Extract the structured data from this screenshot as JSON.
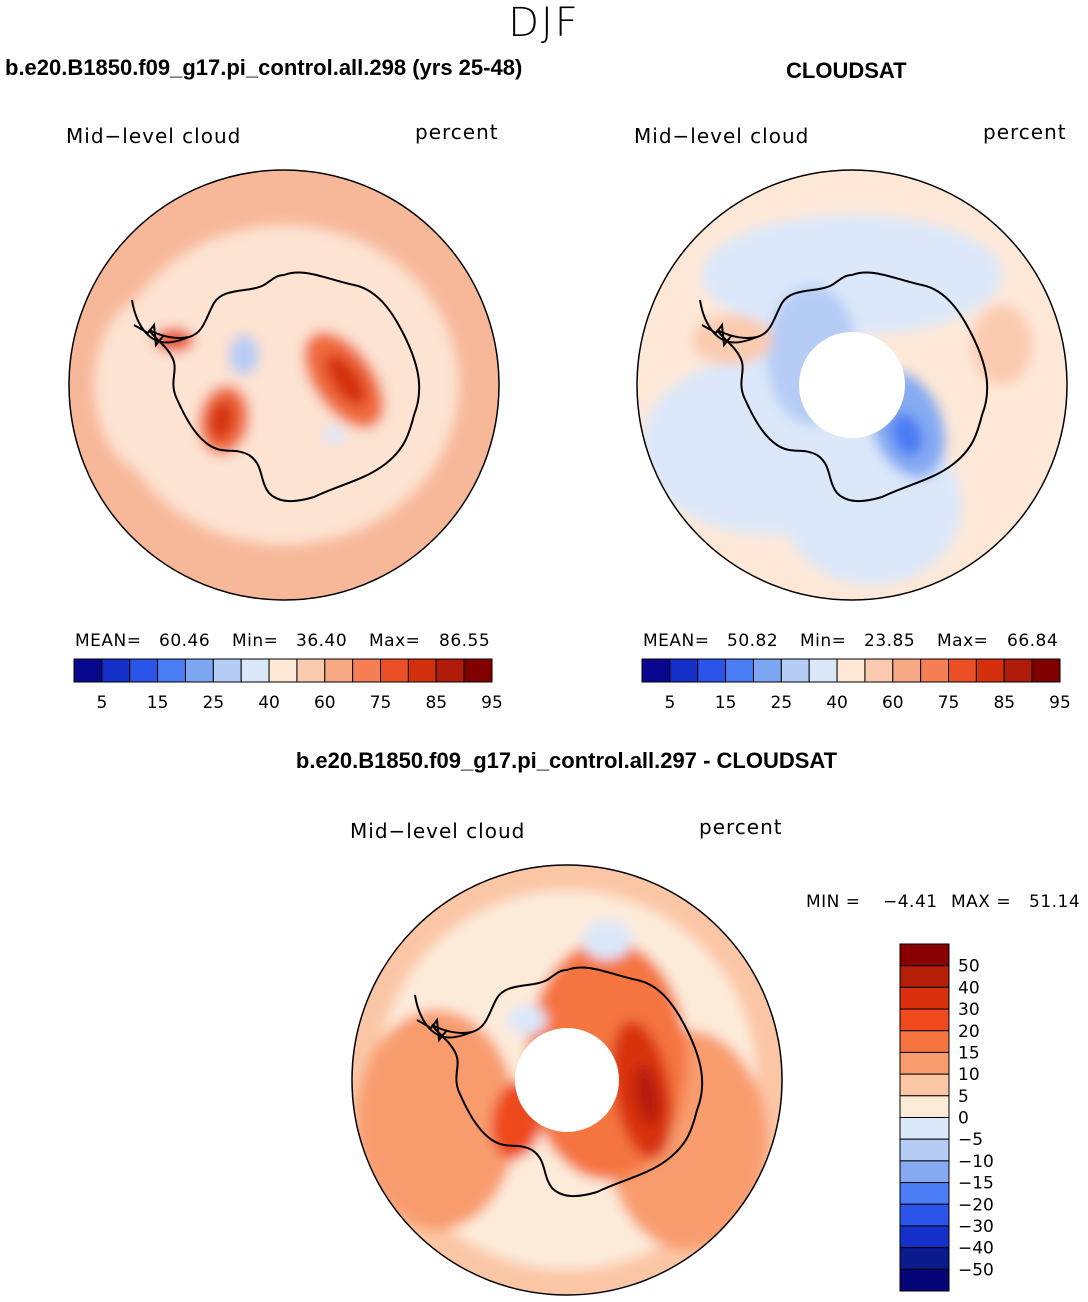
{
  "season": "DJF",
  "panels": [
    {
      "title": "b.e20.B1850.f09_g17.pi_control.all.298 (yrs 25-48)",
      "variable": "Mid−level cloud",
      "units": "percent",
      "stats": {
        "mean_label": "MEAN=",
        "mean": "60.46",
        "min_label": "Min=",
        "min": "36.40",
        "max_label": "Max=",
        "max": "86.55"
      }
    },
    {
      "title": "CLOUDSAT",
      "variable": "Mid−level cloud",
      "units": "percent",
      "stats": {
        "mean_label": "MEAN=",
        "mean": "50.82",
        "min_label": "Min=",
        "min": "23.85",
        "max_label": "Max=",
        "max": "66.84"
      }
    }
  ],
  "diff_panel": {
    "title": "b.e20.B1850.f09_g17.pi_control.all.297 - CLOUDSAT",
    "variable": "Mid−level cloud",
    "units": "percent",
    "minmax": {
      "min_label": "MIN =",
      "min": "−4.41",
      "max_label": "MAX =",
      "max": "51.14"
    }
  },
  "chart_data": [
    {
      "type": "heatmap",
      "projection": "south-polar-stereographic",
      "colorbar": {
        "orientation": "horizontal",
        "levels": [
          "5",
          "15",
          "25",
          "40",
          "60",
          "75",
          "85",
          "95"
        ],
        "colors": [
          "#08088f",
          "#1530c8",
          "#2a55e8",
          "#4a7cf4",
          "#7da6f2",
          "#b5ccf5",
          "#dbe8fa",
          "#fde8d8",
          "#fbcbb0",
          "#f7a884",
          "#f57e55",
          "#ea4f26",
          "#d4300e",
          "#b01c0a",
          "#800000"
        ]
      },
      "mean": 60.46,
      "min": 36.4,
      "max": 86.55
    },
    {
      "type": "heatmap",
      "projection": "south-polar-stereographic",
      "colorbar": {
        "orientation": "horizontal",
        "levels": [
          "5",
          "15",
          "25",
          "40",
          "60",
          "75",
          "85",
          "95"
        ],
        "colors": [
          "#08088f",
          "#1530c8",
          "#2a55e8",
          "#4a7cf4",
          "#7da6f2",
          "#b5ccf5",
          "#dbe8fa",
          "#fde8d8",
          "#fbcbb0",
          "#f7a884",
          "#f57e55",
          "#ea4f26",
          "#d4300e",
          "#b01c0a",
          "#800000"
        ]
      },
      "mean": 50.82,
      "min": 23.85,
      "max": 66.84
    },
    {
      "type": "heatmap",
      "projection": "south-polar-stereographic",
      "colorbar": {
        "orientation": "vertical",
        "levels": [
          "50",
          "40",
          "30",
          "20",
          "15",
          "10",
          "5",
          "0",
          "−5",
          "−10",
          "−15",
          "−20",
          "−30",
          "−40",
          "−50"
        ],
        "colors": [
          "#8a0000",
          "#b51f07",
          "#d8300c",
          "#ee4a1d",
          "#f5743f",
          "#f89c6e",
          "#fbc6a6",
          "#fdebda",
          "#dbe8fa",
          "#b5ccf5",
          "#85aaf2",
          "#4a7cf4",
          "#2a55e8",
          "#1530c8",
          "#0b1a8c",
          "#050578"
        ]
      },
      "min": -4.41,
      "max": 51.14
    }
  ]
}
